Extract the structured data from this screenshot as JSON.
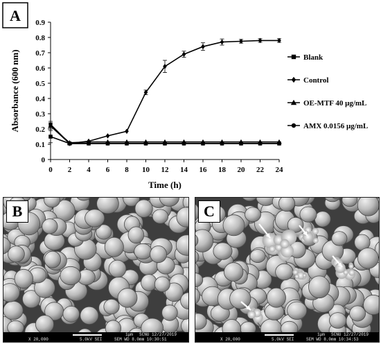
{
  "chart_data": {
    "type": "line",
    "panel_label": "A",
    "xlabel": "Time (h)",
    "ylabel": "Absorbance (600 nm)",
    "x": [
      0,
      2,
      4,
      6,
      8,
      10,
      12,
      14,
      16,
      18,
      20,
      22,
      24
    ],
    "xlim": [
      0,
      24
    ],
    "ylim": [
      0,
      0.9
    ],
    "x_ticks": [
      "0",
      "2",
      "4",
      "6",
      "8",
      "10",
      "12",
      "14",
      "16",
      "18",
      "20",
      "22",
      "24"
    ],
    "y_ticks": [
      "0",
      "0.1",
      "0.2",
      "0.3",
      "0.4",
      "0.5",
      "0.6",
      "0.7",
      "0.8",
      "0.9"
    ],
    "grid": false,
    "legend_position": "right",
    "series": [
      {
        "name": "Blank",
        "marker": "square",
        "values": [
          0.15,
          0.105,
          0.105,
          0.105,
          0.105,
          0.105,
          0.105,
          0.105,
          0.105,
          0.105,
          0.105,
          0.105,
          0.105
        ],
        "errors": [
          0.04,
          0.005,
          0.005,
          0.005,
          0.005,
          0.005,
          0.005,
          0.005,
          0.005,
          0.005,
          0.005,
          0.005,
          0.005
        ]
      },
      {
        "name": "Control",
        "marker": "diamond",
        "values": [
          0.22,
          0.105,
          0.12,
          0.155,
          0.185,
          0.44,
          0.61,
          0.69,
          0.74,
          0.77,
          0.775,
          0.78,
          0.78
        ],
        "errors": [
          0.02,
          0.005,
          0.005,
          0.005,
          0.005,
          0.015,
          0.04,
          0.02,
          0.025,
          0.02,
          0.012,
          0.012,
          0.012
        ]
      },
      {
        "name": "OE-MTF 40 μg/mL",
        "marker": "triangle",
        "values": [
          0.22,
          0.11,
          0.115,
          0.115,
          0.115,
          0.115,
          0.115,
          0.115,
          0.115,
          0.115,
          0.115,
          0.115,
          0.115
        ],
        "errors": [
          0.02,
          0.005,
          0.005,
          0.005,
          0.005,
          0.005,
          0.005,
          0.005,
          0.005,
          0.005,
          0.005,
          0.005,
          0.005
        ]
      },
      {
        "name": "AMX 0.0156  μg/mL",
        "marker": "circle",
        "values": [
          0.23,
          0.105,
          0.105,
          0.105,
          0.105,
          0.105,
          0.105,
          0.105,
          0.105,
          0.105,
          0.105,
          0.105,
          0.105
        ],
        "errors": [
          0.02,
          0.005,
          0.005,
          0.005,
          0.005,
          0.005,
          0.005,
          0.005,
          0.005,
          0.005,
          0.005,
          0.005,
          0.005
        ]
      }
    ]
  },
  "panels": {
    "b": {
      "label": "B",
      "scale": "1μm",
      "line1": "SCNU  12/27/2019",
      "line2_left": "X 20,000",
      "line2_mid": "5.0kV  SEI",
      "line2_right": "SEM   WD 8.0mm   10:30:51"
    },
    "c": {
      "label": "C",
      "scale": "1μm",
      "line1": "SCNU  12/27/2019",
      "line2_left": "X 20,000",
      "line2_mid": "5.0kV  SEI",
      "line2_right": "SEM   WD 8.0mm   10:34:53"
    }
  }
}
